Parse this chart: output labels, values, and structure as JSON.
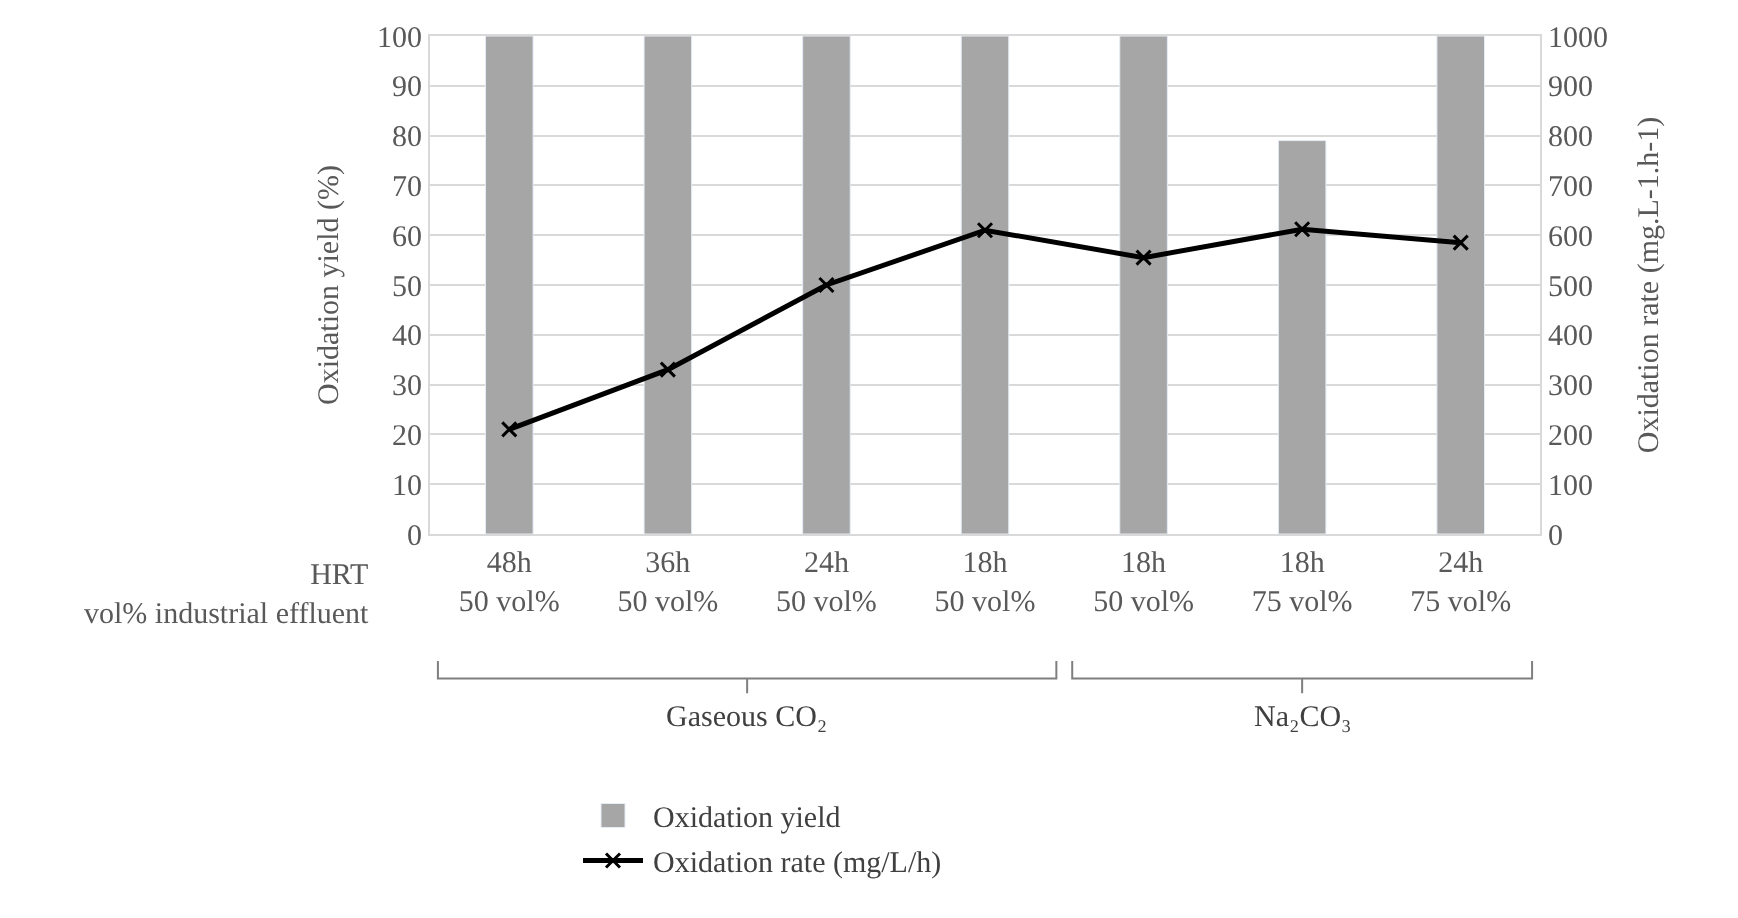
{
  "chart_data": {
    "type": "bar",
    "categories": [
      "48h\n50 vol%",
      "36h\n50 vol%",
      "24h\n50 vol%",
      "18h\n50 vol%",
      "18h\n50 vol%",
      "18h\n75 vol%",
      "24h\n75 vol%"
    ],
    "ylabel": "Oxidation yield (%)",
    "y2label": "Oxidation rate (mg.L-1.h-1)",
    "series": [
      {
        "name": "Oxidation yield",
        "color": "#a6a6a6",
        "values": [
          100,
          100,
          100,
          100,
          100,
          79,
          100
        ]
      },
      {
        "name": "Oxidation rate (mg/L/h)",
        "type": "line",
        "axis": "y2",
        "color": "#000000",
        "marker": "cross",
        "values": [
          210,
          330,
          500,
          610,
          555,
          612,
          585
        ]
      }
    ],
    "ylim": [
      0,
      100
    ],
    "yticks": [
      0,
      10,
      20,
      30,
      40,
      50,
      60,
      70,
      80,
      90,
      100
    ],
    "y2lim": [
      0,
      1000
    ],
    "y2ticks": [
      0,
      100,
      200,
      300,
      400,
      500,
      600,
      700,
      800,
      900,
      1000
    ],
    "grid": "y",
    "legend": "bottom",
    "annotations": [
      "HRT",
      "vol% industrial effluent",
      "Gaseous CO₂",
      "Na₂CO₃"
    ]
  }
}
